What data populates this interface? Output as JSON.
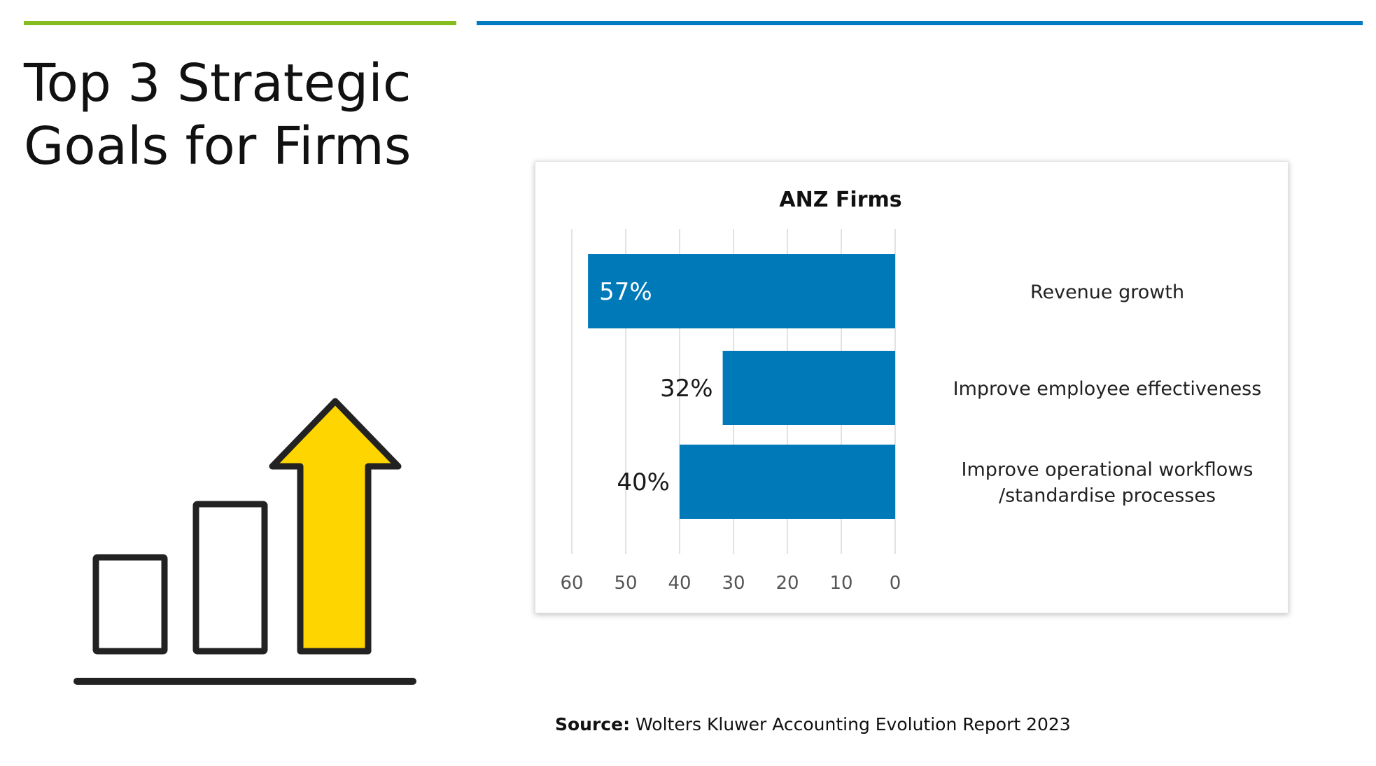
{
  "slide": {
    "title_lines": [
      "Top 3 Strategic",
      "Goals for Firms"
    ],
    "accent_colors": {
      "green": "#85bc22",
      "blue": "#007ac3",
      "arrow_yellow": "#ffd500"
    },
    "source_label": "Source:",
    "source_text": "Wolters Kluwer Accounting Evolution Report 2023",
    "icon": "growth-bars-arrow-icon"
  },
  "chart_data": {
    "type": "bar",
    "orientation": "horizontal",
    "direction": "right-to-left",
    "title": "ANZ Firms",
    "categories": [
      [
        "Revenue growth"
      ],
      [
        "Improve employee effectiveness"
      ],
      [
        "Improve operational workflows",
        "/standardise processes"
      ]
    ],
    "values": [
      57,
      32,
      40
    ],
    "value_labels": [
      "57%",
      "32%",
      "40%"
    ],
    "xlim": [
      0,
      60
    ],
    "xticks": [
      60,
      50,
      40,
      30,
      20,
      10,
      0
    ],
    "grid": true,
    "legend": "none",
    "bar_color": "#0079b8",
    "inside_label_color": "#ffffff",
    "outside_label_color": "#1a1a1a"
  }
}
